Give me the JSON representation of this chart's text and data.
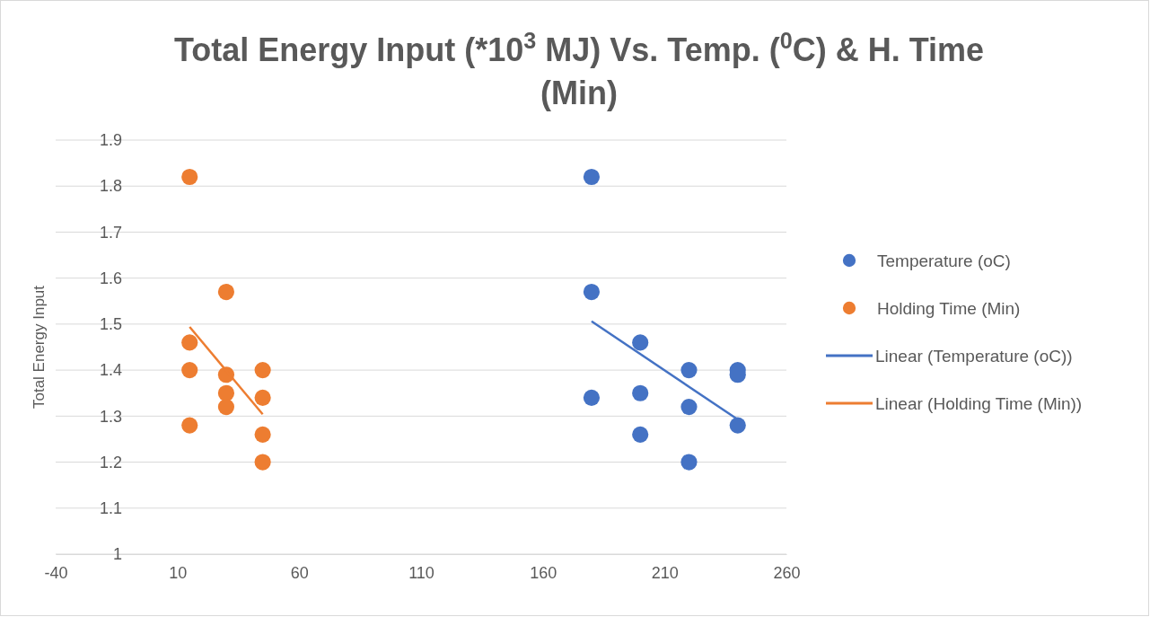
{
  "chart_data": {
    "type": "scatter",
    "title": "Total Energy Input (*10$^{3}$ MJ) Vs. Temp. ($^{0}$C) & H. Time (Min)",
    "ylabel": "Total Energy Input",
    "xlim": [
      -40,
      260
    ],
    "xticks": [
      -40,
      10,
      60,
      110,
      160,
      210,
      260
    ],
    "ylim": [
      1,
      1.9
    ],
    "yticks": [
      1,
      1.1,
      1.2,
      1.3,
      1.4,
      1.5,
      1.6,
      1.7,
      1.8,
      1.9
    ],
    "grid": "y",
    "legend": "right",
    "series": [
      {
        "name": "Temperature (oC)",
        "marker": "circle",
        "color": "#4472c4",
        "x": [
          180,
          180,
          180,
          200,
          200,
          200,
          220,
          220,
          220,
          240,
          240,
          240
        ],
        "values": [
          1.82,
          1.57,
          1.34,
          1.46,
          1.35,
          1.26,
          1.4,
          1.32,
          1.2,
          1.4,
          1.39,
          1.28
        ]
      },
      {
        "name": "Holding Time (Min)",
        "marker": "circle",
        "color": "#ed7d31",
        "x": [
          15,
          15,
          15,
          15,
          30,
          30,
          30,
          30,
          45,
          45,
          45,
          45
        ],
        "values": [
          1.82,
          1.46,
          1.4,
          1.28,
          1.57,
          1.39,
          1.35,
          1.32,
          1.4,
          1.34,
          1.26,
          1.2
        ]
      },
      {
        "name": "Linear (Temperature (oC))",
        "type": "line",
        "color": "#4472c4",
        "x": [
          180,
          240
        ],
        "values": [
          1.506,
          1.293
        ]
      },
      {
        "name": "Linear (Holding Time (Min))",
        "type": "line",
        "color": "#ed7d31",
        "x": [
          15,
          45
        ],
        "values": [
          1.494,
          1.304
        ]
      }
    ]
  }
}
